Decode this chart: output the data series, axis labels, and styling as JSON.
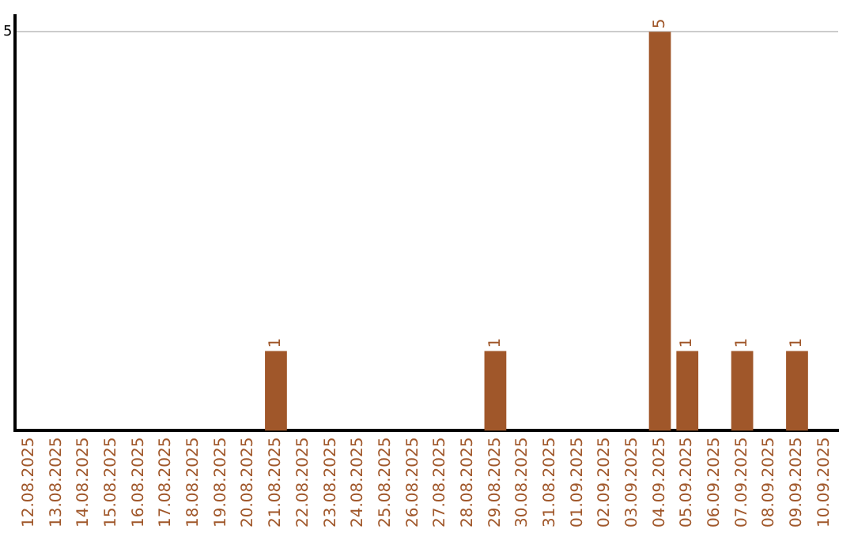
{
  "chart_data": {
    "type": "bar",
    "categories": [
      "12.08.2025",
      "13.08.2025",
      "14.08.2025",
      "15.08.2025",
      "16.08.2025",
      "17.08.2025",
      "18.08.2025",
      "19.08.2025",
      "20.08.2025",
      "21.08.2025",
      "22.08.2025",
      "23.08.2025",
      "24.08.2025",
      "25.08.2025",
      "26.08.2025",
      "27.08.2025",
      "28.08.2025",
      "29.08.2025",
      "30.08.2025",
      "31.08.2025",
      "01.09.2025",
      "02.09.2025",
      "03.09.2025",
      "04.09.2025",
      "05.09.2025",
      "06.09.2025",
      "07.09.2025",
      "08.09.2025",
      "09.09.2025",
      "10.09.2025"
    ],
    "values": [
      0,
      0,
      0,
      0,
      0,
      0,
      0,
      0,
      0,
      1,
      0,
      0,
      0,
      0,
      0,
      0,
      0,
      1,
      0,
      0,
      0,
      0,
      0,
      5,
      1,
      0,
      1,
      0,
      1,
      0
    ],
    "color": "#a0572a",
    "ylim": [
      0,
      5.2
    ],
    "yticks": [
      5
    ],
    "value_labels": [
      null,
      null,
      null,
      null,
      null,
      null,
      null,
      null,
      null,
      "1",
      null,
      null,
      null,
      null,
      null,
      null,
      null,
      "1",
      null,
      null,
      null,
      null,
      null,
      "5",
      "1",
      null,
      "1",
      null,
      "1",
      null
    ],
    "grid": "y"
  }
}
